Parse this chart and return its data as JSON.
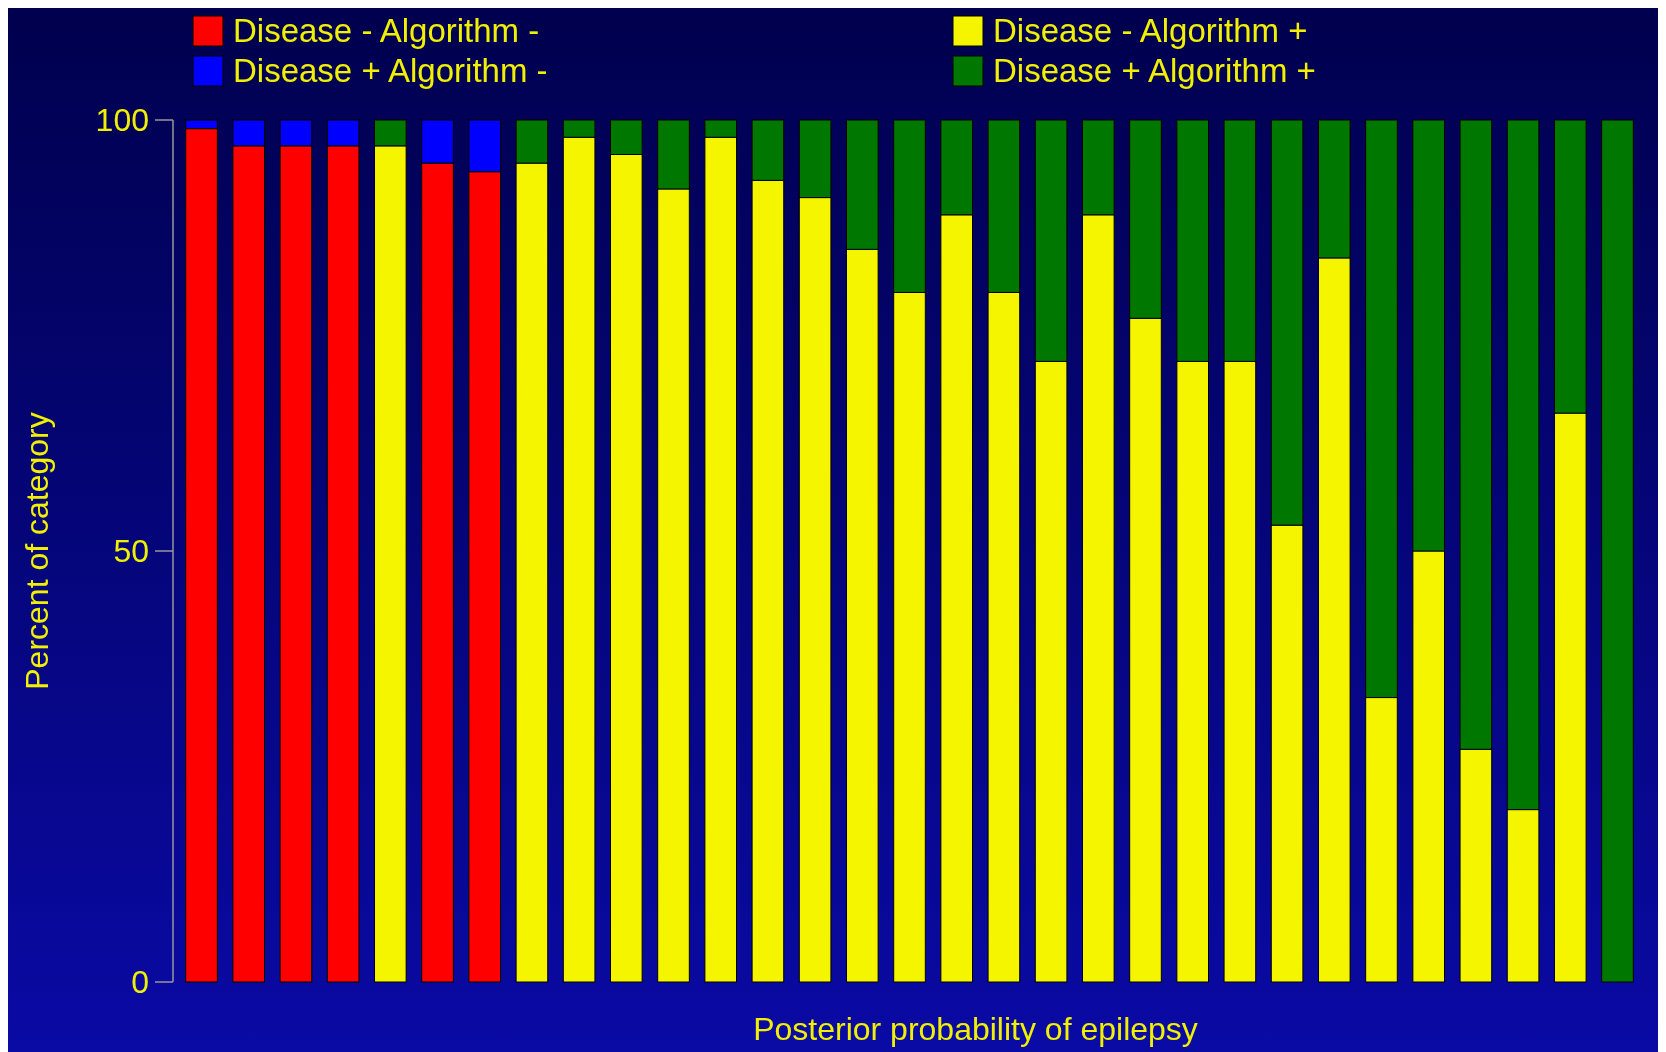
{
  "chart_data": {
    "type": "bar",
    "stacked": true,
    "xlabel": "Posterior probability of epilepsy",
    "ylabel": "Percent of category",
    "categories": [
      null,
      null,
      null,
      null,
      null,
      null,
      null,
      null,
      null,
      null,
      null,
      null,
      null,
      null,
      null,
      null,
      null,
      null,
      null,
      null,
      null,
      null,
      null,
      null,
      null,
      null,
      null,
      null,
      null,
      null,
      null
    ],
    "series": [
      {
        "name": "Disease - Algorithm -",
        "color": "#ff0000",
        "values": [
          99,
          97,
          97,
          97,
          0,
          95,
          94,
          0,
          0,
          0,
          0,
          0,
          0,
          0,
          0,
          0,
          0,
          0,
          0,
          0,
          0,
          0,
          0,
          0,
          0,
          0,
          0,
          0,
          0,
          0,
          0
        ]
      },
      {
        "name": "Disease - Algorithm +",
        "color": "#f5f500",
        "values": [
          0,
          0,
          0,
          0,
          97,
          0,
          0,
          95,
          98,
          96,
          92,
          98,
          93,
          91,
          85,
          80,
          89,
          80,
          72,
          89,
          77,
          72,
          72,
          53,
          84,
          33,
          50,
          27,
          20,
          66,
          0
        ]
      },
      {
        "name": "Disease + Algorithm -",
        "color": "#0000ff",
        "values": [
          1,
          3,
          3,
          3,
          0,
          5,
          6,
          0,
          0,
          0,
          0,
          0,
          0,
          0,
          0,
          0,
          0,
          0,
          0,
          0,
          0,
          0,
          0,
          0,
          0,
          0,
          0,
          0,
          0,
          0,
          0
        ]
      },
      {
        "name": "Disease + Algorithm +",
        "color": "#007800",
        "values": [
          0,
          0,
          0,
          0,
          3,
          0,
          0,
          5,
          2,
          4,
          8,
          2,
          7,
          9,
          15,
          20,
          11,
          20,
          28,
          11,
          23,
          28,
          28,
          47,
          16,
          67,
          50,
          73,
          80,
          34,
          100
        ]
      }
    ],
    "ylim": [
      0,
      100
    ],
    "yticks": [
      0,
      50,
      100
    ],
    "grid": false,
    "legend": "top"
  }
}
